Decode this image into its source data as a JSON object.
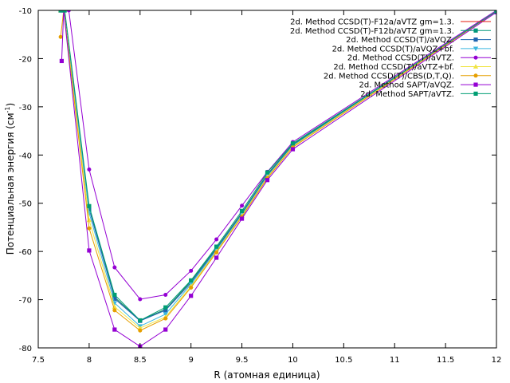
{
  "chart_data": {
    "type": "line",
    "xlabel": "R (атомная единица)",
    "ylabel_main": "Потенциальная энергия (см",
    "ylabel_sup": "-1",
    "ylabel_end": ")",
    "xlim": [
      7.5,
      12
    ],
    "ylim": [
      -80,
      -10
    ],
    "xticks": [
      7.5,
      8,
      8.5,
      9,
      9.5,
      10,
      10.5,
      11,
      11.5,
      12
    ],
    "yticks": [
      -80,
      -70,
      -60,
      -50,
      -40,
      -30,
      -20,
      -10
    ],
    "legend_position": "top-right",
    "grid": false,
    "series": [
      {
        "name": "2d. Method CCSD(T)-F12a/aVTZ gm=1.3.",
        "color": "#e5190e",
        "marker": "none",
        "x": [
          7.72,
          7.75,
          8.0,
          8.25,
          8.5,
          8.75,
          9.0,
          9.25,
          9.5,
          9.75,
          10.0,
          12.0
        ],
        "y": [
          -10,
          -10,
          -51.0,
          -69.5,
          -74.3,
          -72.0,
          -66.2,
          -59.3,
          -52.0,
          -44.0,
          -37.8,
          -10.2
        ]
      },
      {
        "name": "2d. Method CCSD(T)-F12b/aVTZ gm=1.3.",
        "color": "#00977a",
        "marker": "square",
        "x": [
          7.72,
          7.75,
          8.0,
          8.25,
          8.5,
          8.75,
          9.0,
          9.25,
          9.5,
          9.75,
          10.0,
          12.0
        ],
        "y": [
          -10,
          -10,
          -51.0,
          -69.5,
          -74.3,
          -72.0,
          -66.2,
          -59.3,
          -52.0,
          -44.0,
          -37.8,
          -10.2
        ]
      },
      {
        "name": "2d. Method CCSD(T)/aVQZ.",
        "color": "#1f64b0",
        "marker": "square",
        "x": [
          7.72,
          7.75,
          8.0,
          8.25,
          8.5,
          8.75,
          9.0,
          9.25,
          9.5,
          9.75,
          10.0,
          12.0
        ],
        "y": [
          -10,
          -10,
          -51.2,
          -69.8,
          -74.4,
          -72.2,
          -66.5,
          -59.5,
          -52.2,
          -44.2,
          -38.0,
          -10.2
        ]
      },
      {
        "name": "2d. Method CCSD(T)/aVQZ+bf.",
        "color": "#3ab6e0",
        "marker": "triangle-down",
        "x": [
          7.72,
          7.75,
          8.0,
          8.25,
          8.5,
          8.75,
          9.0,
          9.25,
          9.5,
          9.75,
          10.0,
          12.0
        ],
        "y": [
          -10,
          -10,
          -52.0,
          -70.7,
          -75.5,
          -73.0,
          -66.8,
          -59.8,
          -52.4,
          -44.4,
          -38.1,
          -10.2
        ]
      },
      {
        "name": "2d. Method CCSD(T)/aVTZ.",
        "color": "#9400d3",
        "marker": "circle",
        "x": [
          7.8,
          8.0,
          8.25,
          8.5,
          8.75,
          9.0,
          9.25,
          9.5,
          9.75,
          10.0,
          12.0
        ],
        "y": [
          -10,
          -43.0,
          -63.3,
          -69.9,
          -69.0,
          -64.0,
          -57.5,
          -50.5,
          -43.5,
          -37.3,
          -10.0
        ]
      },
      {
        "name": "2d. Method CCSD(T)/aVTZ+bf.",
        "color": "#f0e442",
        "marker": "triangle",
        "x": [
          7.72,
          7.75,
          8.0,
          8.25,
          8.5,
          8.75,
          9.0,
          9.25,
          9.5,
          9.75,
          10.0,
          12.0
        ],
        "y": [
          -10,
          -10,
          -53.5,
          -71.5,
          -75.9,
          -73.6,
          -67.2,
          -60.0,
          -52.6,
          -44.6,
          -38.2,
          -10.2
        ]
      },
      {
        "name": "2d. Method CCSD(T)/CBS(D,T,Q).",
        "color": "#e69f00",
        "marker": "circle",
        "x": [
          7.72,
          7.75,
          8.0,
          8.25,
          8.5,
          8.75,
          9.0,
          9.25,
          9.5,
          9.75,
          10.0,
          12.0
        ],
        "y": [
          -15.5,
          -10,
          -55.2,
          -72.2,
          -76.4,
          -73.9,
          -67.5,
          -60.2,
          -52.8,
          -44.8,
          -38.4,
          -10.2
        ]
      },
      {
        "name": "2d. Method SAPT/aVQZ.",
        "color": "#9400d3",
        "marker": "square",
        "x": [
          7.73,
          7.75,
          8.0,
          8.25,
          8.5,
          8.75,
          9.0,
          9.25,
          9.5,
          9.75,
          10.0,
          12.0
        ],
        "y": [
          -20.5,
          -10,
          -59.8,
          -76.2,
          -79.7,
          -76.2,
          -69.2,
          -61.3,
          -53.2,
          -45.2,
          -38.8,
          -10.4
        ]
      },
      {
        "name": "2d. Method SAPT/aVTZ.",
        "color": "#009e73",
        "marker": "square",
        "x": [
          7.72,
          7.76,
          8.0,
          8.25,
          8.5,
          8.75,
          9.0,
          9.25,
          9.5,
          9.75,
          10.0,
          12.0
        ],
        "y": [
          -10,
          -10,
          -50.6,
          -69.0,
          -74.3,
          -71.6,
          -66.0,
          -59.0,
          -51.6,
          -43.6,
          -37.6,
          -10.2
        ]
      }
    ]
  }
}
